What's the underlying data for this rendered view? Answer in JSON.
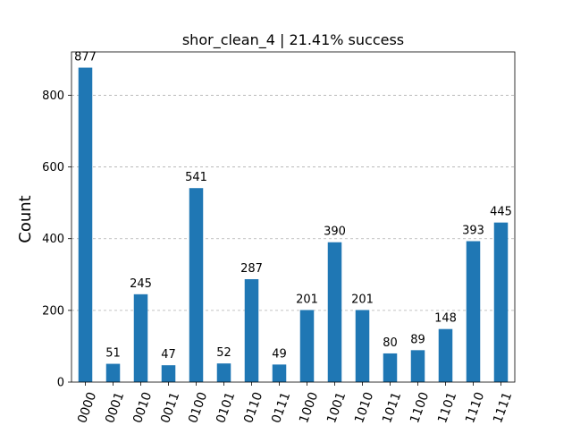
{
  "chart_data": {
    "type": "bar",
    "title": "shor_clean_4 | 21.41% success",
    "xlabel": "",
    "ylabel": "Count",
    "categories": [
      "0000",
      "0001",
      "0010",
      "0011",
      "0100",
      "0101",
      "0110",
      "0111",
      "1000",
      "1001",
      "1010",
      "1011",
      "1100",
      "1101",
      "1110",
      "1111"
    ],
    "values": [
      877,
      51,
      245,
      47,
      541,
      52,
      287,
      49,
      201,
      390,
      201,
      80,
      89,
      148,
      393,
      445
    ],
    "data_labels": [
      "877",
      "51",
      "245",
      "47",
      "541",
      "52",
      "287",
      "49",
      "201",
      "390",
      "201",
      "80",
      "89",
      "148",
      "393",
      "445"
    ],
    "ylim": [
      0,
      920.85
    ],
    "yticks": [
      0,
      200,
      400,
      600,
      800
    ],
    "ytick_labels": [
      "0",
      "200",
      "400",
      "600",
      "800"
    ],
    "grid": "y-dashed",
    "legend": "none",
    "colors": {
      "bar": "#1f77b4",
      "grid": "#b0b0b0"
    }
  }
}
